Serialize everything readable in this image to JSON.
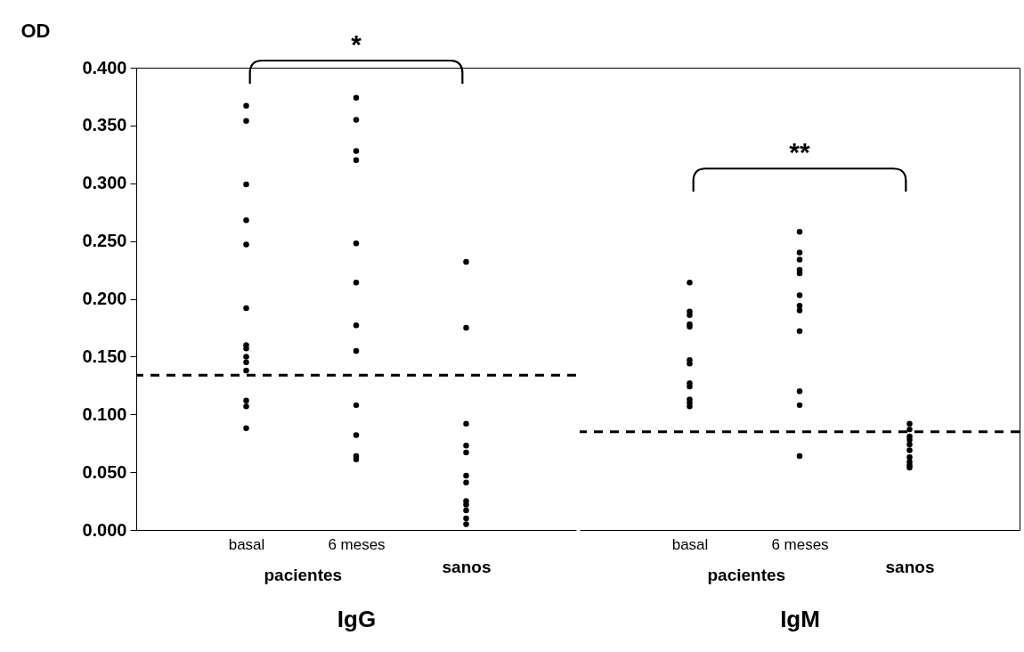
{
  "chart_data": [
    {
      "type": "scatter",
      "xlabel": "IgG",
      "ylabel": "OD",
      "categories": [
        "basal",
        "6 meses",
        "sanos"
      ],
      "marker": "circle",
      "ylim": [
        0,
        0.4
      ],
      "yticks": [
        {
          "value": 0,
          "label": "0.000"
        },
        {
          "value": 0.05,
          "label": "0.050"
        },
        {
          "value": 0.1,
          "label": "0.100"
        },
        {
          "value": 0.15,
          "label": "0.150"
        },
        {
          "value": 0.2,
          "label": "0.200"
        },
        {
          "value": 0.25,
          "label": "0.250"
        },
        {
          "value": 0.3,
          "label": "0.300"
        },
        {
          "value": 0.35,
          "label": "0.350"
        },
        {
          "value": 0.4,
          "label": "0.400"
        }
      ],
      "series": [
        {
          "color": "#000000",
          "x": [
            "basal",
            "basal",
            "basal",
            "basal",
            "basal",
            "basal",
            "basal",
            "basal",
            "basal",
            "basal",
            "basal",
            "basal",
            "basal",
            "basal",
            "6 meses",
            "6 meses",
            "6 meses",
            "6 meses",
            "6 meses",
            "6 meses",
            "6 meses",
            "6 meses",
            "6 meses",
            "6 meses",
            "6 meses",
            "6 meses",
            "sanos",
            "sanos",
            "sanos",
            "sanos",
            "sanos",
            "sanos",
            "sanos",
            "sanos",
            "sanos",
            "sanos",
            "sanos",
            "sanos"
          ],
          "values": [
            0.367,
            0.354,
            0.299,
            0.268,
            0.247,
            0.192,
            0.16,
            0.157,
            0.15,
            0.145,
            0.138,
            0.112,
            0.107,
            0.088,
            0.374,
            0.355,
            0.328,
            0.32,
            0.248,
            0.214,
            0.177,
            0.155,
            0.108,
            0.082,
            0.064,
            0.061,
            0.232,
            0.175,
            0.092,
            0.073,
            0.067,
            0.047,
            0.041,
            0.025,
            0.022,
            0.017,
            0.01,
            0.005
          ]
        }
      ],
      "ref_lines": [
        {
          "axis": "y",
          "value": 0.134,
          "line_style": "dashed",
          "color": "#000000"
        }
      ],
      "annotations": [
        "*",
        "pacientes"
      ]
    },
    {
      "type": "scatter",
      "xlabel": "IgM",
      "categories": [
        "basal",
        "6 meses",
        "sanos"
      ],
      "marker": "circle",
      "tick_labels": "x",
      "ylim": [
        0,
        0.4
      ],
      "series": [
        {
          "color": "#000000",
          "x": [
            "basal",
            "basal",
            "basal",
            "basal",
            "basal",
            "basal",
            "basal",
            "basal",
            "basal",
            "basal",
            "basal",
            "basal",
            "6 meses",
            "6 meses",
            "6 meses",
            "6 meses",
            "6 meses",
            "6 meses",
            "6 meses",
            "6 meses",
            "6 meses",
            "6 meses",
            "6 meses",
            "6 meses",
            "sanos",
            "sanos",
            "sanos",
            "sanos",
            "sanos",
            "sanos",
            "sanos",
            "sanos",
            "sanos",
            "sanos"
          ],
          "values": [
            0.214,
            0.189,
            0.186,
            0.178,
            0.176,
            0.147,
            0.144,
            0.127,
            0.124,
            0.113,
            0.11,
            0.107,
            0.258,
            0.24,
            0.234,
            0.225,
            0.222,
            0.203,
            0.194,
            0.19,
            0.172,
            0.12,
            0.108,
            0.064,
            0.092,
            0.087,
            0.081,
            0.078,
            0.074,
            0.069,
            0.063,
            0.059,
            0.056,
            0.054
          ]
        }
      ],
      "ref_lines": [
        {
          "axis": "y",
          "value": 0.085,
          "line_style": "dashed",
          "color": "#000000"
        }
      ],
      "annotations": [
        "**",
        "pacientes"
      ]
    }
  ]
}
